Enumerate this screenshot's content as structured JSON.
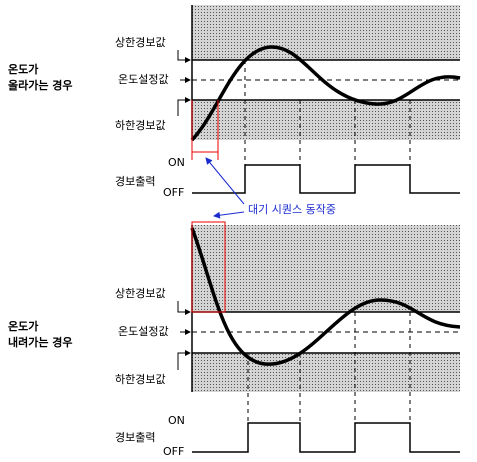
{
  "annotation": "대기 시퀀스 동작중",
  "panels": [
    {
      "title": [
        "온도가",
        "올라가는 경우"
      ],
      "upper": "상한경보값",
      "setpoint": "온도설정값",
      "lower": "하한경보값",
      "on": "ON",
      "output": "경보출력",
      "off": "OFF"
    },
    {
      "title": [
        "온도가",
        "내려가는 경우"
      ],
      "upper": "상한경보값",
      "setpoint": "온도설정값",
      "lower": "하한경보값",
      "on": "ON",
      "output": "경보출력",
      "off": "OFF"
    }
  ]
}
